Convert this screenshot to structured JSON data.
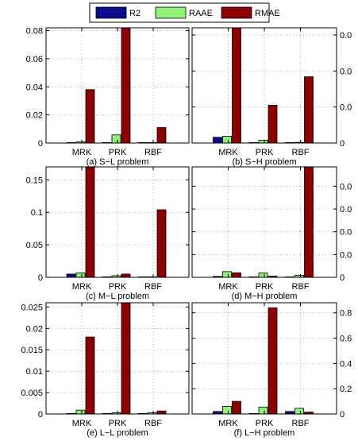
{
  "legend": {
    "items": [
      {
        "label": "R2",
        "color": "#0b0b8f"
      },
      {
        "label": "RAAE",
        "color": "#90f07a"
      },
      {
        "label": "RMAE",
        "color": "#8b0000"
      }
    ]
  },
  "chart_data": [
    {
      "type": "bar",
      "caption": "(a) S−L problem",
      "categories": [
        "MRK",
        "PRK",
        "RBF"
      ],
      "series": [
        {
          "name": "R2",
          "values": [
            0.0001,
            0.0001,
            0.0001
          ]
        },
        {
          "name": "RAAE",
          "values": [
            0.0008,
            0.0058,
            0.0003
          ]
        },
        {
          "name": "RMAE",
          "values": [
            0.038,
            0.082,
            0.011
          ]
        }
      ],
      "ylim": [
        0,
        0.082
      ],
      "yticks": [
        0,
        0.02,
        0.04,
        0.06,
        0.08
      ],
      "yticklabels": [
        "0",
        "0.02",
        "0.04",
        "0.06",
        "0.08"
      ],
      "grid": true
    },
    {
      "type": "bar",
      "caption": "(b) S−H problem",
      "categories": [
        "MRK",
        "PRK",
        "RBF"
      ],
      "series": [
        {
          "name": "R2",
          "values": [
            0.0016,
            0.0001,
            0.0001
          ]
        },
        {
          "name": "RAAE",
          "values": [
            0.0019,
            0.0008,
            0.0002
          ]
        },
        {
          "name": "RMAE",
          "values": [
            0.032,
            0.0105,
            0.0184
          ]
        }
      ],
      "ylim": [
        0,
        0.032
      ],
      "yticks": [
        0,
        0.01,
        0.02,
        0.03
      ],
      "yticklabels": [
        "0",
        "0.0",
        "0.0",
        "0.0"
      ],
      "grid": true
    },
    {
      "type": "bar",
      "caption": "(c) M−L problem",
      "categories": [
        "MRK",
        "PRK",
        "RBF"
      ],
      "series": [
        {
          "name": "R2",
          "values": [
            0.005,
            0.0008,
            0.0003
          ]
        },
        {
          "name": "RAAE",
          "values": [
            0.0068,
            0.0025,
            0.0003
          ]
        },
        {
          "name": "RMAE",
          "values": [
            0.17,
            0.005,
            0.104
          ]
        }
      ],
      "ylim": [
        0,
        0.17
      ],
      "yticks": [
        0,
        0.05,
        0.1,
        0.15
      ],
      "yticklabels": [
        "0",
        "0.05",
        "0.1",
        "0.15"
      ],
      "grid": true
    },
    {
      "type": "bar",
      "caption": "(d) M−H problem",
      "categories": [
        "MRK",
        "PRK",
        "RBF"
      ],
      "series": [
        {
          "name": "R2",
          "values": [
            0.0004,
            0.0001,
            0.0001
          ]
        },
        {
          "name": "RAAE",
          "values": [
            0.0025,
            0.0019,
            0.0009
          ]
        },
        {
          "name": "RMAE",
          "values": [
            0.002,
            0.0005,
            0.0485
          ]
        }
      ],
      "ylim": [
        0,
        0.0485
      ],
      "yticks": [
        0,
        0.01,
        0.02,
        0.03,
        0.04
      ],
      "yticklabels": [
        "0",
        "0.0",
        "0.0",
        "0.0",
        "0.0"
      ],
      "grid": true
    },
    {
      "type": "bar",
      "caption": "(e) L−L problem",
      "categories": [
        "MRK",
        "PRK",
        "RBF"
      ],
      "series": [
        {
          "name": "R2",
          "values": [
            5e-05,
            5e-05,
            0.0001
          ]
        },
        {
          "name": "RAAE",
          "values": [
            0.0009,
            0.0003,
            0.0003
          ]
        },
        {
          "name": "RMAE",
          "values": [
            0.018,
            0.026,
            0.0007
          ]
        }
      ],
      "ylim": [
        0,
        0.026
      ],
      "yticks": [
        0,
        0.005,
        0.01,
        0.015,
        0.02,
        0.025
      ],
      "yticklabels": [
        "0",
        "0.005",
        "0.01",
        "0.015",
        "0.02",
        "0.025"
      ],
      "grid": true
    },
    {
      "type": "bar",
      "caption": "(f) L−H problem",
      "categories": [
        "MRK",
        "PRK",
        "RBF"
      ],
      "series": [
        {
          "name": "R2",
          "values": [
            0.02,
            0.002,
            0.02
          ]
        },
        {
          "name": "RAAE",
          "values": [
            0.06,
            0.055,
            0.045
          ]
        },
        {
          "name": "RMAE",
          "values": [
            0.1,
            0.84,
            0.015
          ]
        }
      ],
      "ylim": [
        0,
        0.88
      ],
      "yticks": [
        0,
        0.2,
        0.4,
        0.6,
        0.8
      ],
      "yticklabels": [
        "0",
        "0.2",
        "0.4",
        "0.6",
        "0.8"
      ],
      "grid": true
    }
  ]
}
